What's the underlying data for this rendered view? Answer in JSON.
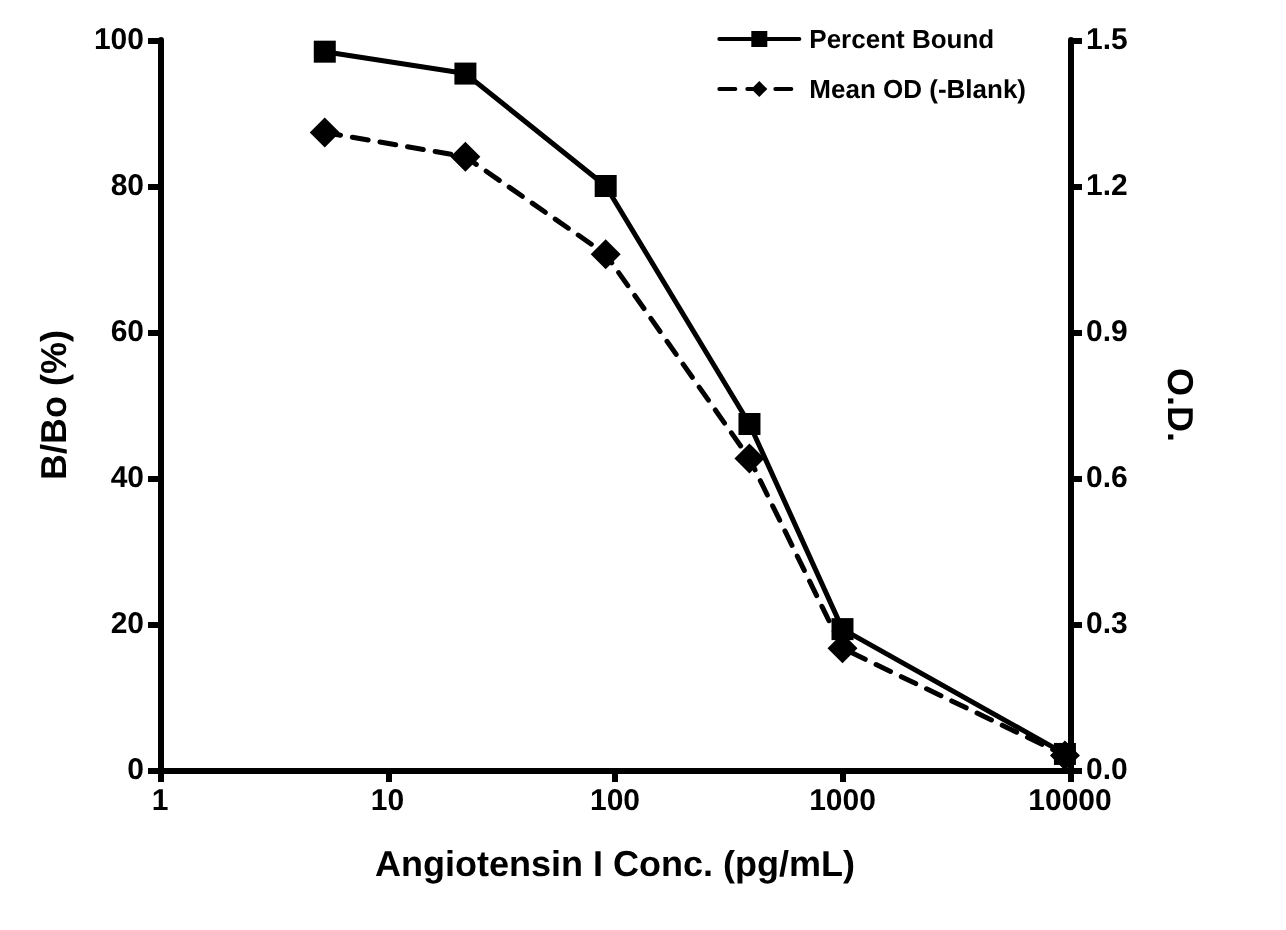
{
  "chart_data": {
    "type": "line",
    "xlabel": "Angiotensin I Conc. (pg/mL)",
    "ylabel": "B/Bo (%)",
    "y2label": "O.D.",
    "log": "x",
    "xlim": [
      1,
      10000
    ],
    "xticks": [
      1,
      10,
      100,
      1000,
      10000
    ],
    "ylim": [
      0,
      100
    ],
    "yticks": [
      0,
      20,
      40,
      60,
      80,
      100
    ],
    "y2lim": [
      0,
      1.5
    ],
    "y2ticks": [
      {
        "value": 0,
        "label": "0.0"
      },
      {
        "value": 0.3,
        "label": "0.3"
      },
      {
        "value": 0.6,
        "label": "0.6"
      },
      {
        "value": 0.9,
        "label": "0.9"
      },
      {
        "value": 1.2,
        "label": "1.2"
      },
      {
        "value": 1.5,
        "label": "1.5"
      }
    ],
    "x": [
      5.3,
      22,
      91,
      390,
      1000,
      9500
    ],
    "grid": false,
    "legend": "top right",
    "series": [
      {
        "name": "Percent Bound",
        "color": "#000000",
        "marker": "square",
        "line_style": "solid",
        "values": [
          98.4,
          95.4,
          80,
          47.4,
          19.3,
          2.2
        ]
      },
      {
        "name": "Mean OD (-Blank)",
        "color": "#000000",
        "marker": "diamond",
        "line_style": "dashed",
        "axis": "y2",
        "values": [
          1.31,
          1.26,
          1.06,
          0.64,
          0.25,
          0.03
        ]
      }
    ]
  }
}
